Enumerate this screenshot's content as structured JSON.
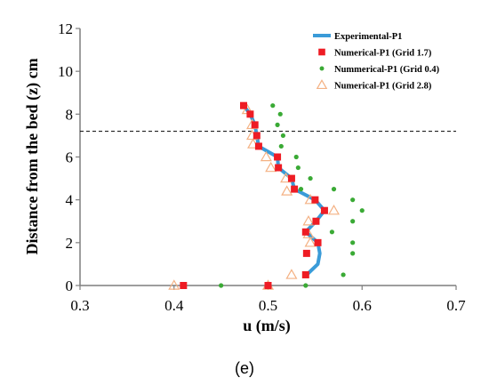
{
  "colors": {
    "experimental": "#3a9bd8",
    "grid17": "#ee1c24",
    "grid04": "#3aaa35",
    "grid28": "#f4b183",
    "axis": "#7f7f7f",
    "reference_line": "#000000"
  },
  "panel_label": "(e)",
  "chart_data": {
    "type": "scatter",
    "xlabel": "u (m/s)",
    "ylabel": "Distance from the bed (z) cm",
    "xlim": [
      0.3,
      0.7
    ],
    "ylim": [
      0,
      12
    ],
    "xticks": [
      "0.3",
      "0.4",
      "0.5",
      "0.6",
      "0.7"
    ],
    "yticks": [
      "0",
      "2",
      "4",
      "6",
      "8",
      "10",
      "12"
    ],
    "grid": false,
    "legend_position": "top-right",
    "reference_line_y": 7.2,
    "series": [
      {
        "name": "Experimental-P1",
        "marker": "line",
        "points": [
          [
            0.474,
            8.4
          ],
          [
            0.481,
            8.0
          ],
          [
            0.486,
            7.5
          ],
          [
            0.488,
            7.0
          ],
          [
            0.49,
            6.5
          ],
          [
            0.51,
            6.0
          ],
          [
            0.511,
            5.5
          ],
          [
            0.525,
            5.0
          ],
          [
            0.528,
            4.5
          ],
          [
            0.55,
            4.0
          ],
          [
            0.56,
            3.5
          ],
          [
            0.551,
            3.0
          ],
          [
            0.54,
            2.5
          ],
          [
            0.553,
            2.0
          ],
          [
            0.555,
            1.5
          ],
          [
            0.553,
            1.0
          ],
          [
            0.541,
            0.5
          ]
        ]
      },
      {
        "name": "Numerical-P1 (Grid 1.7)",
        "marker": "square",
        "points": [
          [
            0.474,
            8.4
          ],
          [
            0.481,
            8.0
          ],
          [
            0.486,
            7.5
          ],
          [
            0.488,
            7.0
          ],
          [
            0.49,
            6.5
          ],
          [
            0.51,
            6.0
          ],
          [
            0.511,
            5.5
          ],
          [
            0.525,
            5.0
          ],
          [
            0.528,
            4.5
          ],
          [
            0.55,
            4.0
          ],
          [
            0.56,
            3.5
          ],
          [
            0.551,
            3.0
          ],
          [
            0.54,
            2.5
          ],
          [
            0.553,
            2.0
          ],
          [
            0.541,
            1.5
          ],
          [
            0.54,
            0.5
          ],
          [
            0.41,
            0.0
          ],
          [
            0.5,
            0.0
          ]
        ]
      },
      {
        "name": "Nummerical-P1 (Grid 0.4)",
        "marker": "dot",
        "points": [
          [
            0.505,
            8.4
          ],
          [
            0.513,
            8.0
          ],
          [
            0.51,
            7.5
          ],
          [
            0.516,
            7.0
          ],
          [
            0.514,
            6.5
          ],
          [
            0.53,
            6.0
          ],
          [
            0.532,
            5.5
          ],
          [
            0.545,
            5.0
          ],
          [
            0.535,
            4.5
          ],
          [
            0.57,
            4.5
          ],
          [
            0.59,
            4.0
          ],
          [
            0.6,
            3.5
          ],
          [
            0.59,
            3.0
          ],
          [
            0.568,
            2.5
          ],
          [
            0.59,
            2.0
          ],
          [
            0.59,
            1.5
          ],
          [
            0.58,
            0.5
          ],
          [
            0.45,
            0.0
          ],
          [
            0.54,
            0.0
          ]
        ]
      },
      {
        "name": "Numerical-P1 (Grid 2.8)",
        "marker": "triangle",
        "points": [
          [
            0.478,
            8.2
          ],
          [
            0.483,
            7.5
          ],
          [
            0.483,
            7.0
          ],
          [
            0.484,
            6.6
          ],
          [
            0.498,
            6.0
          ],
          [
            0.503,
            5.5
          ],
          [
            0.519,
            5.0
          ],
          [
            0.52,
            4.4
          ],
          [
            0.545,
            4.0
          ],
          [
            0.57,
            3.5
          ],
          [
            0.543,
            3.0
          ],
          [
            0.543,
            2.4
          ],
          [
            0.545,
            2.0
          ],
          [
            0.525,
            0.5
          ],
          [
            0.4,
            0.0
          ],
          [
            0.5,
            0.0
          ]
        ]
      }
    ]
  }
}
